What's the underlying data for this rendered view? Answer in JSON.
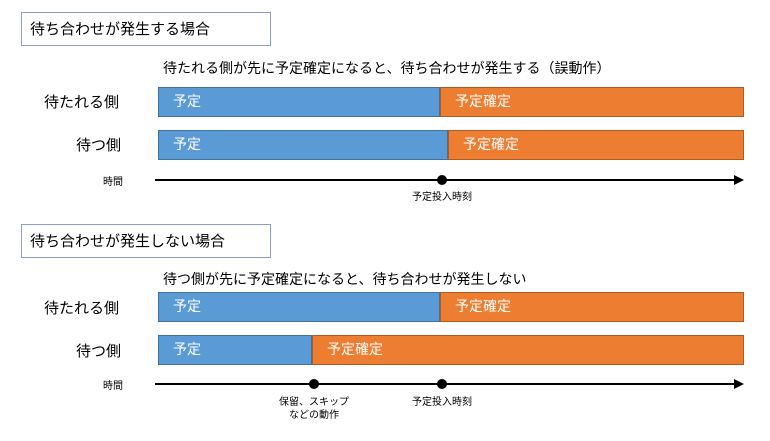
{
  "section1": {
    "title": "待ち合わせが発生する場合",
    "description": "待たれる側が先に予定確定になると、待ち合わせが発生する（誤動作）",
    "rows": [
      {
        "label": "待たれる側",
        "segment1": "予定",
        "segment2": "予定確定"
      },
      {
        "label": "待つ側",
        "segment1": "予定",
        "segment2": "予定確定"
      }
    ],
    "axis": {
      "label": "時間",
      "marker": "予定投入時刻"
    }
  },
  "section2": {
    "title": "待ち合わせが発生しない場合",
    "description": "待つ側が先に予定確定になると、待ち合わせが発生しない",
    "rows": [
      {
        "label": "待たれる側",
        "segment1": "予定",
        "segment2": "予定確定"
      },
      {
        "label": "待つ側",
        "segment1": "予定",
        "segment2": "予定確定"
      }
    ],
    "axis": {
      "label": "時間",
      "marker1_line1": "保留、スキップ",
      "marker1_line2": "などの動作",
      "marker2": "予定投入時刻"
    }
  },
  "colors": {
    "plan": "#5b9bd5",
    "confirmed": "#ed7d31"
  }
}
